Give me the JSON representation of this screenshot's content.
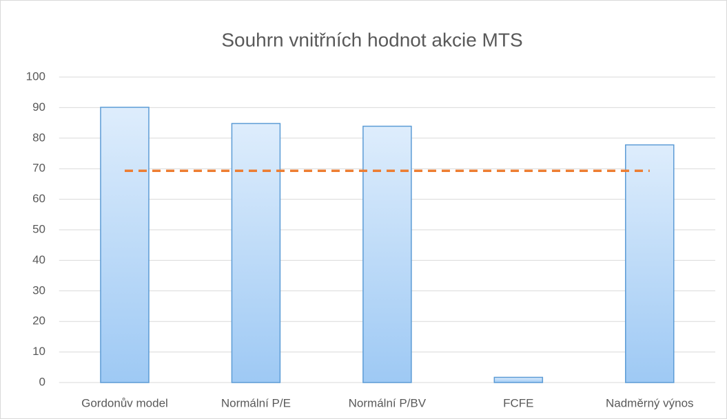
{
  "chart_data": {
    "type": "bar",
    "title": "Souhrn vnitřních hodnot akcie MTS",
    "categories": [
      "Gordonův model",
      "Normální P/E",
      "Normální P/BV",
      "FCFE",
      "Nadměrný výnos"
    ],
    "series": [
      {
        "type": "bar",
        "color": "#5b9bd5",
        "values": [
          90.1,
          84.8,
          83.9,
          1.7,
          77.8
        ]
      },
      {
        "type": "line",
        "color": "#ed7d31",
        "dashed": true,
        "values": [
          69.3,
          69.3,
          69.3,
          69.3,
          69.3
        ]
      }
    ],
    "ylim": [
      0,
      100
    ],
    "yticks": [
      0,
      10,
      20,
      30,
      40,
      50,
      60,
      70,
      80,
      90,
      100
    ],
    "grid": true
  }
}
